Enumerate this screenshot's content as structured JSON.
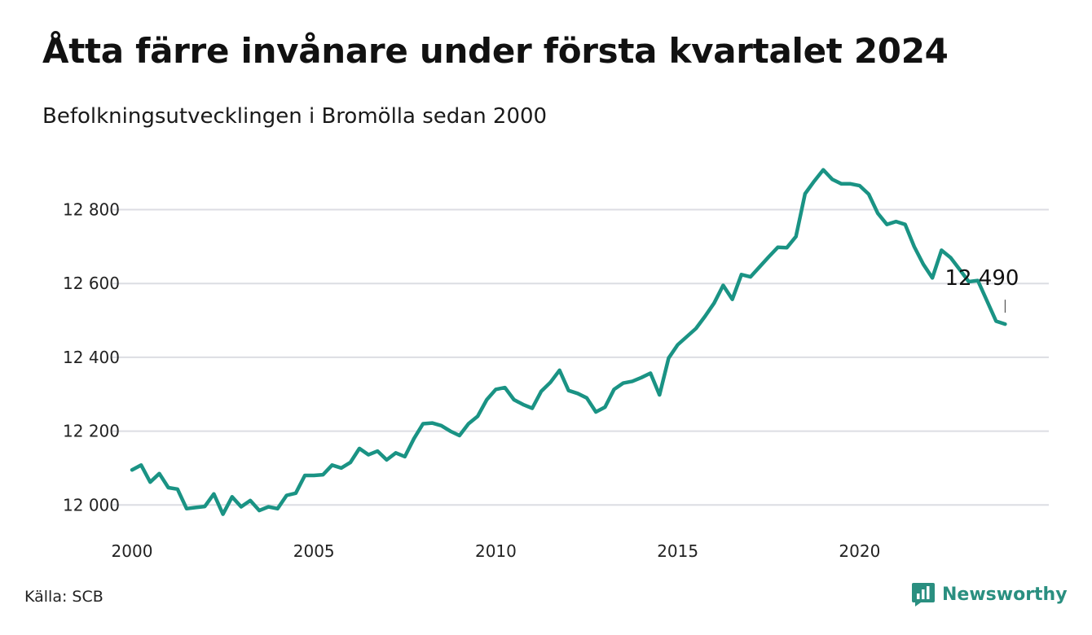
{
  "title": "Åtta färre invånare under första kvartalet 2024",
  "subtitle": "Befolkningsutvecklingen i Bromölla sedan 2000",
  "source": "Källa: SCB",
  "brand": {
    "name": "Newsworthy",
    "icon": "newsworthy-logo-icon",
    "color": "#2a8f80"
  },
  "colors": {
    "line": "#1a9384",
    "grid": "#dcdde3",
    "text": "#111111"
  },
  "chart_data": {
    "type": "line",
    "title": "Åtta färre invånare under första kvartalet 2024",
    "subtitle": "Befolkningsutvecklingen i Bromölla sedan 2000",
    "xlabel": "",
    "ylabel": "",
    "xlim": [
      2000,
      2025.2
    ],
    "ylim": [
      11930,
      12960
    ],
    "grid": "horizontal",
    "legend": "none",
    "x_ticks": [
      2000,
      2005,
      2010,
      2015,
      2020
    ],
    "x_tick_labels": [
      "2000",
      "2005",
      "2010",
      "2015",
      "2020"
    ],
    "y_ticks": [
      12000,
      12200,
      12400,
      12600,
      12800
    ],
    "y_tick_labels": [
      "12 000",
      "12 200",
      "12 400",
      "12 600",
      "12 800"
    ],
    "annotation": {
      "label": "12 490",
      "x": 2024.0,
      "y": 12490
    },
    "series": [
      {
        "x": [
          2000.0,
          2000.25,
          2000.5,
          2000.75,
          2001.0,
          2001.25,
          2001.5,
          2001.75,
          2002.0,
          2002.25,
          2002.5,
          2002.75,
          2003.0,
          2003.25,
          2003.5,
          2003.75,
          2004.0,
          2004.25,
          2004.5,
          2004.75,
          2005.0,
          2005.25,
          2005.5,
          2005.75,
          2006.0,
          2006.25,
          2006.5,
          2006.75,
          2007.0,
          2007.25,
          2007.5,
          2007.75,
          2008.0,
          2008.25,
          2008.5,
          2008.75,
          2009.0,
          2009.25,
          2009.5,
          2009.75,
          2010.0,
          2010.25,
          2010.5,
          2010.75,
          2011.0,
          2011.25,
          2011.5,
          2011.75,
          2012.0,
          2012.25,
          2012.5,
          2012.75,
          2013.0,
          2013.25,
          2013.5,
          2013.75,
          2014.0,
          2014.25,
          2014.5,
          2014.75,
          2015.0,
          2015.25,
          2015.5,
          2015.75,
          2016.0,
          2016.25,
          2016.5,
          2016.75,
          2017.0,
          2017.25,
          2017.5,
          2017.75,
          2018.0,
          2018.25,
          2018.5,
          2018.75,
          2019.0,
          2019.25,
          2019.5,
          2019.75,
          2020.0,
          2020.25,
          2020.5,
          2020.75,
          2021.0,
          2021.25,
          2021.5,
          2021.75,
          2022.0,
          2022.25,
          2022.5,
          2022.75,
          2023.0,
          2023.25,
          2023.5,
          2023.75,
          2024.0
        ],
        "values": [
          12095,
          12108,
          12062,
          12085,
          12047,
          12043,
          11990,
          11993,
          11996,
          12030,
          11975,
          12022,
          11995,
          12012,
          11985,
          11995,
          11990,
          12026,
          12032,
          12080,
          12080,
          12082,
          12108,
          12100,
          12115,
          12153,
          12136,
          12146,
          12122,
          12141,
          12131,
          12180,
          12220,
          12222,
          12215,
          12200,
          12188,
          12220,
          12240,
          12285,
          12313,
          12318,
          12285,
          12272,
          12262,
          12308,
          12332,
          12365,
          12310,
          12302,
          12290,
          12252,
          12265,
          12313,
          12330,
          12335,
          12345,
          12357,
          12298,
          12398,
          12434,
          12456,
          12478,
          12511,
          12547,
          12595,
          12557,
          12624,
          12618,
          12645,
          12672,
          12698,
          12697,
          12727,
          12843,
          12877,
          12908,
          12882,
          12870,
          12870,
          12865,
          12842,
          12790,
          12760,
          12768,
          12760,
          12700,
          12652,
          12615,
          12690,
          12670,
          12638,
          12605,
          12608,
          12553,
          12498,
          12490
        ]
      }
    ]
  }
}
